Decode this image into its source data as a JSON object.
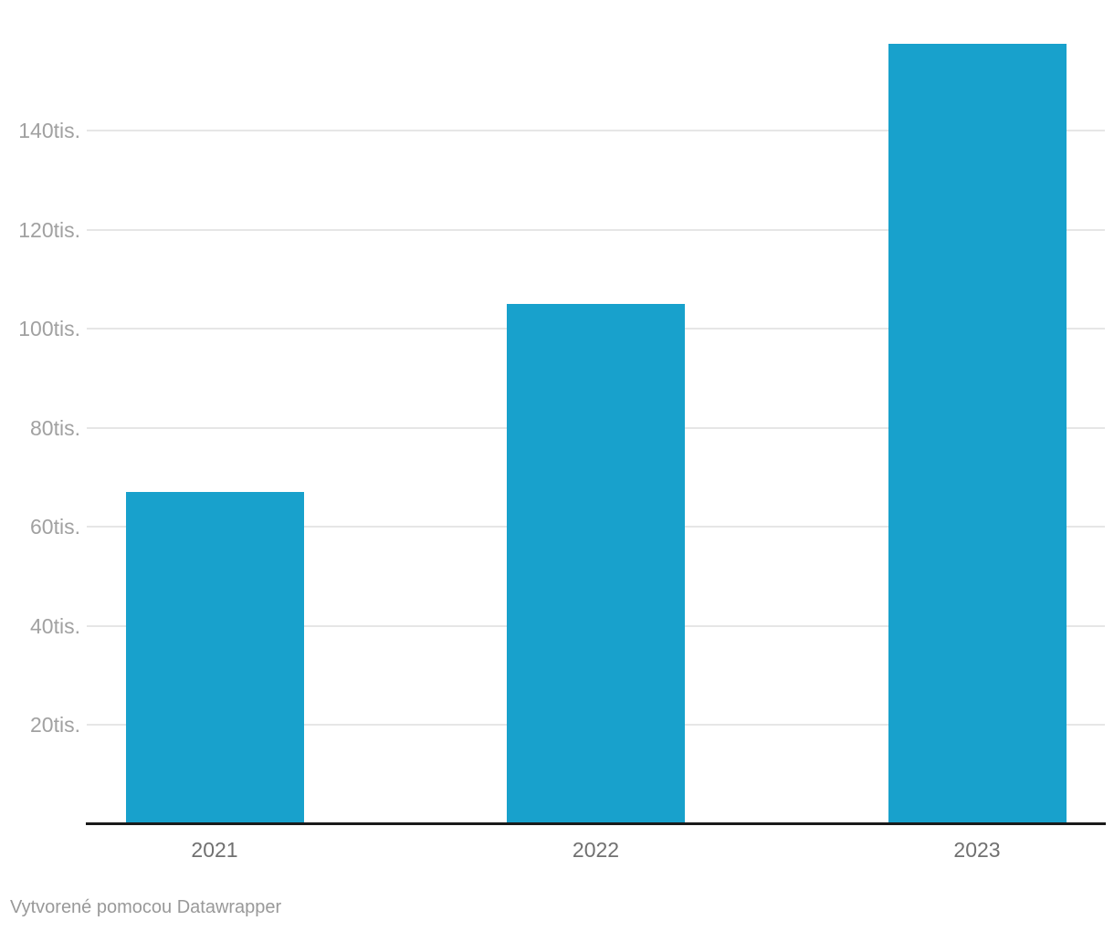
{
  "chart_data": {
    "type": "bar",
    "categories": [
      "2021",
      "2022",
      "2023"
    ],
    "values": [
      67000,
      105000,
      157500
    ],
    "title": "",
    "subtitle": "",
    "xlabel": "",
    "ylabel": "",
    "ylim": [
      0,
      160000
    ],
    "yticks": [
      20000,
      40000,
      60000,
      80000,
      100000,
      120000,
      140000
    ],
    "ytick_labels": [
      "20tis.",
      "40tis.",
      "60tis.",
      "80tis.",
      "100tis.",
      "120tis.",
      "140tis."
    ],
    "grid": true,
    "legend": false,
    "bar_color": "#18a1cc"
  },
  "footer": {
    "attribution": "Vytvorené pomocou Datawrapper"
  },
  "colors": {
    "bar": "#18a1cc",
    "gridline": "#e6e6e6",
    "axis_line": "#1a1a1a",
    "ytick_text": "#a1a1a1",
    "xtick_text": "#707070",
    "footer_text": "#999999",
    "background": "#ffffff"
  }
}
